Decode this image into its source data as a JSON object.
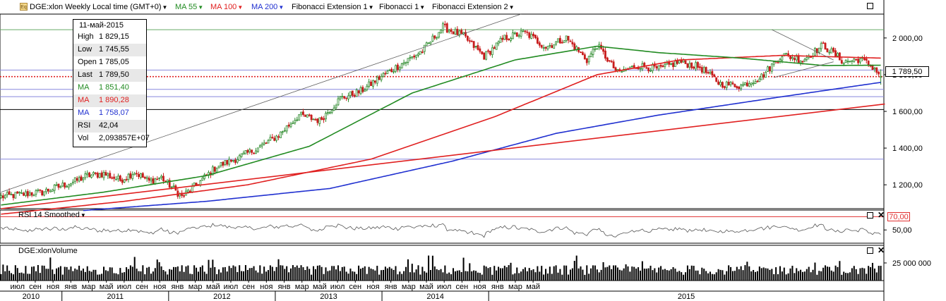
{
  "toolbar": {
    "symbol_label": "DGE:xlon Weekly Local time (GMT+0)",
    "ma55_label": "MA 55",
    "ma100_label": "MA 100",
    "ma200_label": "MA 200",
    "fib_ext1_label": "Fibonacci Extension 1",
    "fib1_label": "Fibonacci 1",
    "fib_ext2_label": "Fibonacci Extension 2",
    "eq_icon": "Eq"
  },
  "colors": {
    "ma55": "#228b22",
    "ma100": "#e02020",
    "ma200": "#2030d0",
    "bull": "#2e8b2e",
    "bear": "#c81e1e",
    "rsi_level": "#e03030"
  },
  "info_box": {
    "date": "11-май-2015",
    "rows": [
      {
        "key": "High",
        "value": "1 829,15",
        "color": "#000000"
      },
      {
        "key": "Low",
        "value": "1 745,55",
        "color": "#000000"
      },
      {
        "key": "Open",
        "value": "1 785,05",
        "color": "#000000"
      },
      {
        "key": "Last",
        "value": "1 789,50",
        "color": "#000000"
      },
      {
        "key": "MA",
        "value": "1 851,40",
        "color": "#228b22"
      },
      {
        "key": "MA",
        "value": "1 890,28",
        "color": "#e02020"
      },
      {
        "key": "MA",
        "value": "1 758,07",
        "color": "#2030d0"
      },
      {
        "key": "RSI",
        "value": "42,04",
        "color": "#000000"
      },
      {
        "key": "Vol",
        "value": "2,093857E+07",
        "color": "#000000"
      }
    ]
  },
  "last_price_tag": "1 789,50",
  "rsi_panel": {
    "label": "RSI 14 Smoothed",
    "level_tag": "70,00",
    "tick": "50,00"
  },
  "volume_panel": {
    "label": "DGE:xlonVolume",
    "tick": "25 000 000"
  },
  "icons": {
    "maximize": "maximize-icon",
    "close": "close-icon"
  },
  "chart_data": {
    "type": "candlestick",
    "interval": "weekly",
    "price_axis": {
      "ticks": [
        "2 000,00",
        "1 800,00",
        "1 600,00",
        "1 400,00",
        "1 200,00"
      ],
      "ylim": [
        1070,
        2130
      ]
    },
    "months": [
      "июл",
      "сен",
      "ноя",
      "янв",
      "мар",
      "май",
      "июл",
      "сен",
      "ноя",
      "янв",
      "мар",
      "май",
      "июл",
      "сен",
      "ноя",
      "янв",
      "мар",
      "май",
      "июл",
      "сен",
      "ноя",
      "янв",
      "мар",
      "май",
      "июл",
      "сен",
      "ноя",
      "янв",
      "мар",
      "май"
    ],
    "years": [
      "2010",
      "2011",
      "2012",
      "2013",
      "2014",
      "2015"
    ],
    "price_path": [
      [
        0,
        1135
      ],
      [
        20,
        1160
      ],
      [
        35,
        1215
      ],
      [
        42,
        1250
      ],
      [
        50,
        1260
      ],
      [
        58,
        1225
      ],
      [
        65,
        1270
      ],
      [
        72,
        1220
      ],
      [
        78,
        1240
      ],
      [
        88,
        1135
      ],
      [
        95,
        1200
      ],
      [
        105,
        1300
      ],
      [
        115,
        1345
      ],
      [
        125,
        1400
      ],
      [
        135,
        1470
      ],
      [
        145,
        1580
      ],
      [
        155,
        1550
      ],
      [
        165,
        1670
      ],
      [
        175,
        1710
      ],
      [
        185,
        1790
      ],
      [
        195,
        1860
      ],
      [
        205,
        1930
      ],
      [
        215,
        2060
      ],
      [
        225,
        2010
      ],
      [
        235,
        1900
      ],
      [
        245,
        2000
      ],
      [
        255,
        2030
      ],
      [
        265,
        1950
      ],
      [
        275,
        2000
      ],
      [
        285,
        1880
      ],
      [
        290,
        1960
      ],
      [
        300,
        1810
      ],
      [
        310,
        1850
      ],
      [
        320,
        1830
      ],
      [
        330,
        1870
      ],
      [
        340,
        1840
      ],
      [
        350,
        1750
      ],
      [
        360,
        1740
      ],
      [
        370,
        1790
      ],
      [
        380,
        1910
      ],
      [
        390,
        1880
      ],
      [
        400,
        1960
      ],
      [
        410,
        1870
      ],
      [
        418,
        1885
      ],
      [
        425,
        1835
      ],
      [
        428,
        1789.5
      ]
    ],
    "ma55_path": [
      [
        0,
        1090
      ],
      [
        50,
        1160
      ],
      [
        100,
        1250
      ],
      [
        150,
        1410
      ],
      [
        200,
        1700
      ],
      [
        250,
        1880
      ],
      [
        290,
        1955
      ],
      [
        320,
        1920
      ],
      [
        360,
        1890
      ],
      [
        400,
        1850
      ],
      [
        428,
        1851.4
      ]
    ],
    "ma100_path": [
      [
        0,
        1040
      ],
      [
        60,
        1110
      ],
      [
        120,
        1200
      ],
      [
        180,
        1340
      ],
      [
        240,
        1570
      ],
      [
        290,
        1800
      ],
      [
        330,
        1880
      ],
      [
        380,
        1905
      ],
      [
        428,
        1890.28
      ]
    ],
    "ma200_path": [
      [
        40,
        1060
      ],
      [
        100,
        1110
      ],
      [
        160,
        1180
      ],
      [
        220,
        1330
      ],
      [
        270,
        1480
      ],
      [
        320,
        1580
      ],
      [
        380,
        1680
      ],
      [
        428,
        1758.07
      ]
    ],
    "trendlines": [
      {
        "name": "upper-channel",
        "points": [
          [
            0,
            1160
          ],
          [
            253,
            2130
          ]
        ],
        "color": "#606060"
      },
      {
        "name": "support-1",
        "points": [
          [
            0,
            1070
          ],
          [
            430,
            1640
          ]
        ],
        "color": "#e02020"
      },
      {
        "name": "wedge-upper",
        "points": [
          [
            375,
            2045
          ],
          [
            405,
            1880
          ]
        ],
        "color": "#606060"
      },
      {
        "name": "wedge-lower",
        "points": [
          [
            376,
            1785
          ],
          [
            405,
            1870
          ]
        ],
        "color": "#606060"
      }
    ],
    "horizontal_levels": [
      {
        "value": 2045,
        "color": "#66aa66"
      },
      {
        "value": 1825,
        "color": "#8888dd"
      },
      {
        "value": 1720,
        "color": "#8888dd"
      },
      {
        "value": 1680,
        "color": "#8888dd"
      },
      {
        "value": 1610,
        "color": "#000000"
      },
      {
        "value": 1340,
        "color": "#8888dd"
      },
      {
        "value": 1789.5,
        "color": "#e02020",
        "dotted": true
      }
    ],
    "rsi": {
      "ylim": [
        30,
        80
      ],
      "level": 70
    },
    "volume": {
      "ylim": [
        0,
        50000000
      ]
    }
  }
}
